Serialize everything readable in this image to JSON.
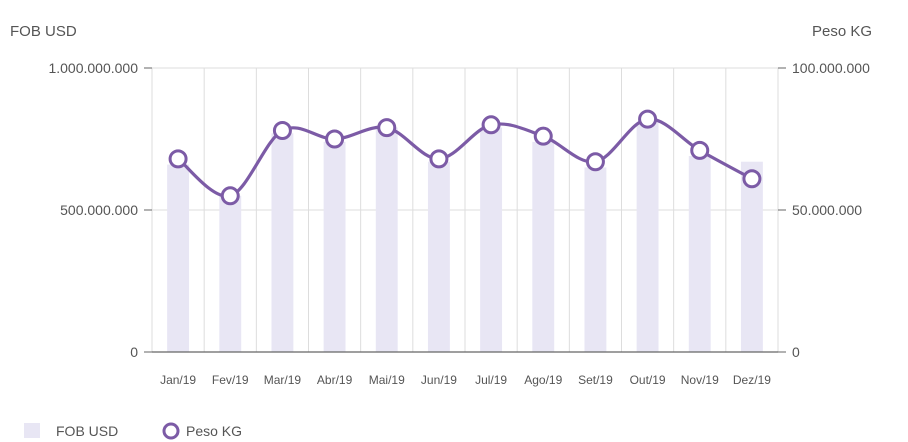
{
  "colors": {
    "bar": "#e8e6f4",
    "line": "#7c5ba6",
    "marker_fill": "#ffffff",
    "grid": "#dddddd",
    "axis": "#666666"
  },
  "chart_data": {
    "type": "bar",
    "title": "",
    "grid": true,
    "legend_position": "bottom-left",
    "categories": [
      "Jan/19",
      "Fev/19",
      "Mar/19",
      "Abr/19",
      "Mai/19",
      "Jun/19",
      "Jul/19",
      "Ago/19",
      "Set/19",
      "Out/19",
      "Nov/19",
      "Dez/19"
    ],
    "y_left": {
      "label": "FOB USD",
      "ylim": [
        0,
        1000000000
      ],
      "ticks": [
        0,
        500000000,
        1000000000
      ],
      "tick_labels": [
        "0",
        "500.000.000",
        "1.000.000.000"
      ]
    },
    "y_right": {
      "label": "Peso KG",
      "ylim": [
        0,
        100000000
      ],
      "ticks": [
        0,
        50000000,
        100000000
      ],
      "tick_labels": [
        "0",
        "50.000.000",
        "100.000.000"
      ]
    },
    "series": [
      {
        "name": "FOB USD",
        "type": "bar",
        "axis": "left",
        "values": [
          660000000,
          550000000,
          770000000,
          740000000,
          790000000,
          670000000,
          790000000,
          740000000,
          650000000,
          810000000,
          690000000,
          670000000
        ]
      },
      {
        "name": "Peso KG",
        "type": "line",
        "axis": "right",
        "values": [
          68000000,
          55000000,
          78000000,
          75000000,
          79000000,
          68000000,
          80000000,
          76000000,
          67000000,
          82000000,
          71000000,
          61000000
        ]
      }
    ]
  }
}
